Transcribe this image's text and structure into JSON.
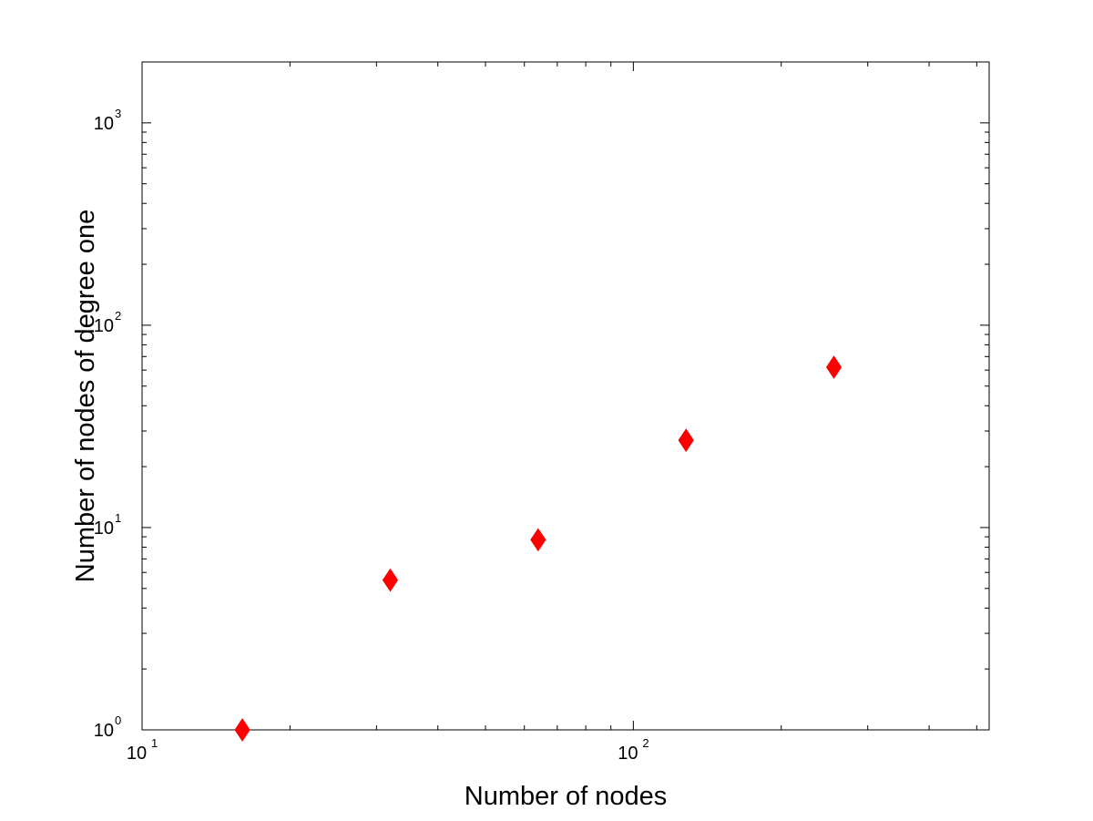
{
  "chart_data": {
    "type": "scatter",
    "title": "",
    "xlabel": "Number of nodes",
    "ylabel": "Number of nodes of degree one",
    "xscale": "log",
    "yscale": "log",
    "xlim": [
      10,
      530
    ],
    "ylim": [
      1,
      2000
    ],
    "x_ticks": [
      {
        "value": 10,
        "base": "10",
        "exp": "1"
      },
      {
        "value": 100,
        "base": "10",
        "exp": "2"
      }
    ],
    "y_ticks": [
      {
        "value": 1,
        "base": "10",
        "exp": "0"
      },
      {
        "value": 10,
        "base": "10",
        "exp": "1"
      },
      {
        "value": 100,
        "base": "10",
        "exp": "2"
      },
      {
        "value": 1000,
        "base": "10",
        "exp": "3"
      }
    ],
    "grid": false,
    "legend": "none",
    "marker": "diamond",
    "marker_color": "#ff0000",
    "series": [
      {
        "x": [
          16,
          32,
          64,
          128,
          256
        ],
        "y": [
          1,
          5.5,
          8.7,
          27,
          62
        ]
      }
    ]
  }
}
